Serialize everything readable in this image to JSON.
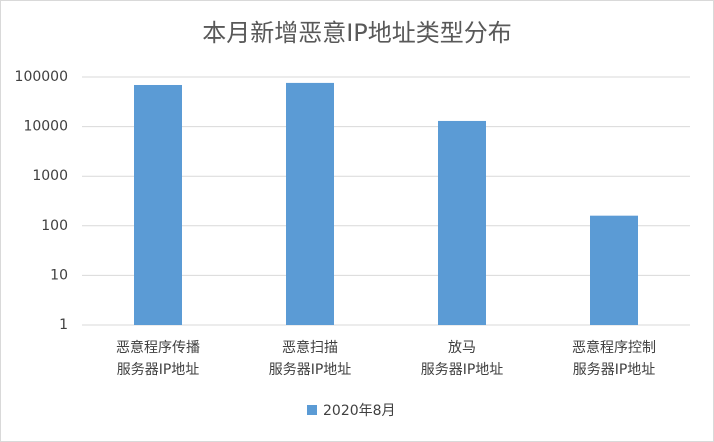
{
  "chart_data": {
    "type": "bar",
    "title": "本月新增恶意IP地址类型分布",
    "categories": [
      [
        "恶意程序传播",
        "服务器IP地址"
      ],
      [
        "恶意扫描",
        "服务器IP地址"
      ],
      [
        "放马",
        "服务器IP地址"
      ],
      [
        "恶意程序控制",
        "服务器IP地址"
      ]
    ],
    "series": [
      {
        "name": "2020年8月",
        "color": "#5b9bd5",
        "values": [
          69000,
          76000,
          13000,
          160
        ]
      }
    ],
    "log_scale": true,
    "ylim": [
      1,
      100000
    ],
    "yticks": [
      1,
      10,
      100,
      1000,
      10000,
      100000
    ],
    "grid": true,
    "legend": "bottom"
  }
}
